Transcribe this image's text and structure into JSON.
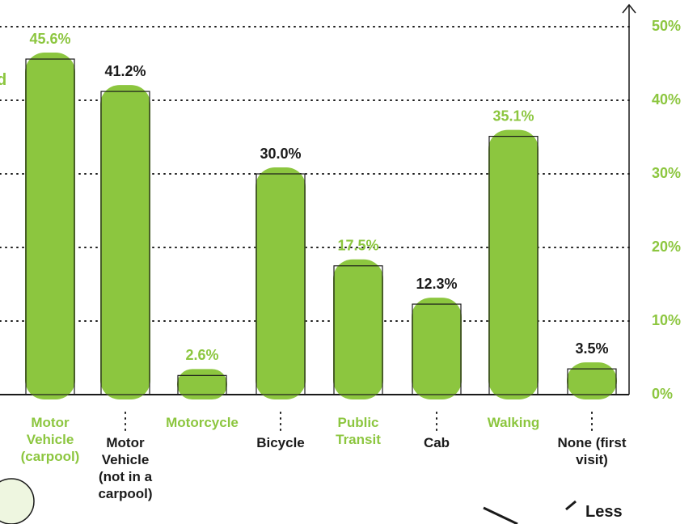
{
  "chart_data": {
    "type": "bar",
    "categories": [
      "Motor Vehicle (carpool)",
      "Motor Vehicle (not in a carpool)",
      "Motorcycle",
      "Bicycle",
      "Public Transit",
      "Cab",
      "Walking",
      "None (first visit)"
    ],
    "values": [
      45.6,
      41.2,
      2.6,
      30.0,
      17.5,
      12.3,
      35.1,
      3.5
    ],
    "value_labels": [
      "45.6%",
      "41.2%",
      "2.6%",
      "30.0%",
      "17.5%",
      "12.3%",
      "35.1%",
      "3.5%"
    ],
    "color": "#8cc63f",
    "label_colors": [
      "#8cc63f",
      "#1a1a1a",
      "#8cc63f",
      "#1a1a1a",
      "#8cc63f",
      "#1a1a1a",
      "#8cc63f",
      "#1a1a1a"
    ],
    "ylim": [
      0,
      50
    ],
    "yticks": [
      {
        "value": 0,
        "label": "0%"
      },
      {
        "value": 10,
        "label": "10%"
      },
      {
        "value": 20,
        "label": "20%"
      },
      {
        "value": 30,
        "label": "30%"
      },
      {
        "value": 40,
        "label": "40%"
      },
      {
        "value": 50,
        "label": "50%"
      }
    ],
    "grid": true,
    "annotations": [
      "d",
      "Less"
    ]
  }
}
